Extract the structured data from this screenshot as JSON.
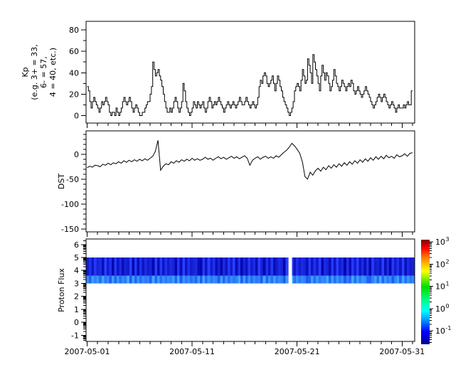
{
  "figure": {
    "bg": "#ffffff",
    "fg": "#000000",
    "x_axis": {
      "tick_labels": [
        "2007-05-01",
        "2007-05-11",
        "2007-05-21",
        "2007-05-31"
      ],
      "tick_days": [
        1,
        11,
        21,
        31
      ],
      "minor_tick_every_days": 1
    }
  },
  "chart_data": [
    {
      "type": "line",
      "mode": "step",
      "name": "kp",
      "ylabel_lines": [
        "Kp",
        "(e.g. 3+ = 33,",
        "6- = 57,",
        "4 = 40, etc.)"
      ],
      "ylim": [
        -7,
        88
      ],
      "yticks": [
        0,
        20,
        40,
        60,
        80
      ],
      "yminor": 10,
      "start_day": 1,
      "hours_per_step": 3,
      "values": [
        27,
        23,
        13,
        7,
        13,
        17,
        13,
        10,
        7,
        3,
        7,
        13,
        10,
        13,
        17,
        13,
        10,
        3,
        0,
        3,
        3,
        0,
        7,
        3,
        0,
        3,
        7,
        13,
        17,
        13,
        10,
        13,
        17,
        13,
        7,
        3,
        7,
        10,
        7,
        3,
        0,
        0,
        3,
        3,
        7,
        10,
        13,
        13,
        20,
        27,
        50,
        43,
        37,
        40,
        43,
        37,
        33,
        27,
        20,
        13,
        7,
        3,
        3,
        7,
        3,
        7,
        13,
        17,
        13,
        7,
        3,
        7,
        13,
        30,
        23,
        13,
        7,
        3,
        0,
        3,
        7,
        13,
        10,
        7,
        13,
        10,
        7,
        10,
        13,
        7,
        3,
        7,
        13,
        17,
        13,
        7,
        10,
        13,
        10,
        13,
        17,
        13,
        10,
        7,
        3,
        7,
        10,
        13,
        10,
        7,
        10,
        13,
        10,
        7,
        10,
        13,
        17,
        13,
        10,
        10,
        13,
        17,
        13,
        10,
        7,
        10,
        13,
        10,
        7,
        10,
        17,
        27,
        33,
        30,
        37,
        40,
        37,
        30,
        27,
        30,
        33,
        37,
        30,
        23,
        30,
        37,
        33,
        27,
        23,
        17,
        13,
        10,
        7,
        3,
        0,
        3,
        7,
        13,
        23,
        27,
        30,
        27,
        23,
        33,
        43,
        37,
        30,
        33,
        53,
        47,
        40,
        30,
        57,
        50,
        43,
        37,
        30,
        23,
        37,
        47,
        40,
        33,
        40,
        37,
        30,
        23,
        27,
        33,
        43,
        37,
        30,
        27,
        23,
        27,
        33,
        30,
        27,
        23,
        27,
        30,
        27,
        33,
        30,
        23,
        20,
        23,
        27,
        23,
        20,
        17,
        20,
        23,
        27,
        23,
        20,
        17,
        13,
        10,
        7,
        10,
        13,
        17,
        20,
        17,
        13,
        17,
        20,
        17,
        13,
        10,
        7,
        10,
        13,
        10,
        7,
        3,
        7,
        10,
        7,
        7,
        7,
        10,
        7,
        10,
        13,
        10,
        10,
        23
      ]
    },
    {
      "type": "line",
      "mode": "linear",
      "name": "dst",
      "ylabel": "DST",
      "ylim": [
        -156,
        47
      ],
      "yticks": [
        0,
        -50,
        -100,
        -150
      ],
      "yminor": 10,
      "start_day": 1,
      "hours_per_step": 6,
      "values": [
        -27,
        -24,
        -26,
        -22,
        -23,
        -25,
        -20,
        -22,
        -18,
        -21,
        -17,
        -19,
        -15,
        -18,
        -13,
        -16,
        -12,
        -15,
        -11,
        -14,
        -10,
        -13,
        -9,
        -12,
        -8,
        -4,
        6,
        28,
        -32,
        -24,
        -19,
        -21,
        -15,
        -18,
        -13,
        -16,
        -11,
        -14,
        -10,
        -13,
        -8,
        -12,
        -9,
        -12,
        -10,
        -6,
        -10,
        -8,
        -12,
        -8,
        -5,
        -9,
        -6,
        -10,
        -7,
        -4,
        -8,
        -5,
        -9,
        -6,
        -3,
        -8,
        -22,
        -12,
        -8,
        -5,
        -10,
        -6,
        -4,
        -8,
        -5,
        -8,
        -3,
        -6,
        -1,
        4,
        8,
        14,
        22,
        17,
        10,
        2,
        -15,
        -45,
        -50,
        -36,
        -42,
        -33,
        -28,
        -34,
        -26,
        -31,
        -23,
        -28,
        -21,
        -26,
        -19,
        -24,
        -17,
        -22,
        -15,
        -20,
        -13,
        -18,
        -11,
        -16,
        -9,
        -14,
        -7,
        -12,
        -5,
        -10,
        -4,
        -9,
        -2,
        -7,
        -4,
        -8,
        -1,
        -5,
        -3,
        1,
        -4,
        2,
        3
      ]
    },
    {
      "type": "heatmap",
      "name": "proton-flux",
      "ylabel": "Proton Flux",
      "ylim": [
        -1.48,
        6.43
      ],
      "yticks": [
        6,
        5,
        4,
        3,
        2,
        1,
        0,
        -1
      ],
      "log_minors": true,
      "band": {
        "y_top": 5,
        "y_bottom": 3,
        "bottom_strip_top": 3.6
      },
      "gap_days": [
        20.17,
        20.5
      ],
      "colors": {
        "main_dark": "#0000a6",
        "main_bright": "#2840ff",
        "strip_dark": "#1c50f0",
        "strip_bright": "#40a8ff"
      },
      "stripes_main": "4738562947183625491827364519283746518293745621839472516384927153846295173824651928374652837491652839461728493627184539261847392645",
      "stripes_bottom": "6285739461827364918273645192837465829174635281937465182736459182736451927384651829374651283746592837461529384762158392746158293746"
    }
  ],
  "colorbar": {
    "label_base": "10",
    "exponents": [
      3,
      2,
      1,
      0,
      -1
    ],
    "ylim_exp": [
      -1.6,
      3.1
    ],
    "gradient_top_to_bottom": [
      "#7f0000",
      "#ff0000",
      "#ff8800",
      "#ffff00",
      "#00dd00",
      "#00ff88",
      "#00ffff",
      "#0088ff",
      "#0000ff",
      "#00008f"
    ],
    "stops_pct": [
      0,
      8,
      18,
      30,
      45,
      58,
      68,
      78,
      88,
      100
    ]
  }
}
